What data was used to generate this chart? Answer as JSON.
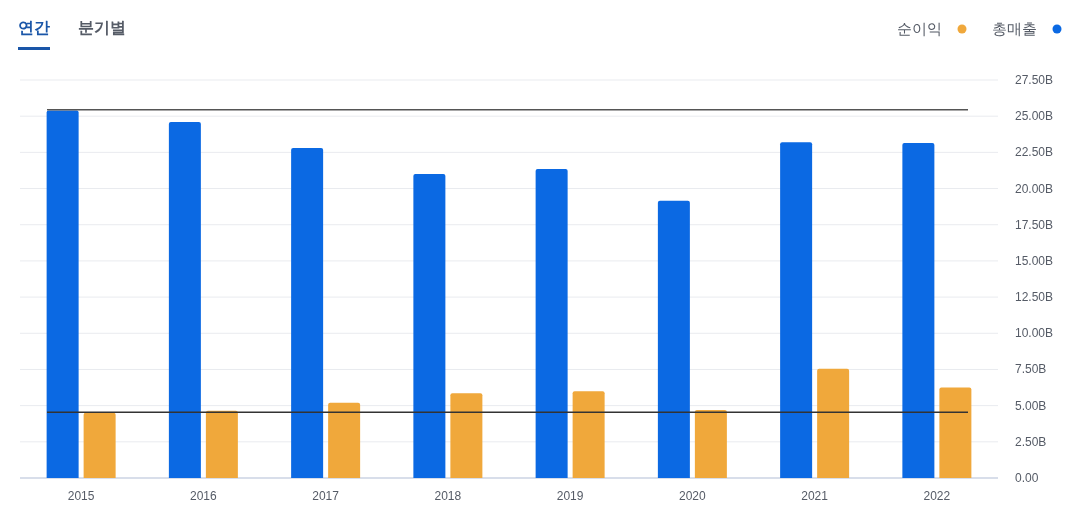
{
  "chart_data": {
    "type": "bar",
    "annotations": [
      "연간",
      "분기별"
    ],
    "categories": [
      "2015",
      "2016",
      "2017",
      "2018",
      "2019",
      "2020",
      "2021",
      "2022"
    ],
    "series": [
      {
        "name": "총매출",
        "color": "#0b69e3",
        "values": [
          25.4,
          24.6,
          22.8,
          21.0,
          21.35,
          19.15,
          23.2,
          23.15
        ]
      },
      {
        "name": "순이익",
        "color": "#f0a83b",
        "values": [
          4.5,
          4.65,
          5.2,
          5.85,
          6.0,
          4.7,
          7.55,
          6.25
        ]
      }
    ],
    "ylim": [
      0,
      27.5
    ],
    "yticks": [
      {
        "value": 0,
        "label": "0.00"
      },
      {
        "value": 2.5,
        "label": "2.50B"
      },
      {
        "value": 5,
        "label": "5.00B"
      },
      {
        "value": 7.5,
        "label": "7.50B"
      },
      {
        "value": 10,
        "label": "10.00B"
      },
      {
        "value": 12.5,
        "label": "12.50B"
      },
      {
        "value": 15,
        "label": "15.00B"
      },
      {
        "value": 17.5,
        "label": "17.50B"
      },
      {
        "value": 20,
        "label": "20.00B"
      },
      {
        "value": 22.5,
        "label": "22.50B"
      },
      {
        "value": 25,
        "label": "25.00B"
      },
      {
        "value": 27.5,
        "label": "27.50B"
      }
    ],
    "grid": "y",
    "legend": "top right",
    "ref_lines": [
      {
        "axis": "y",
        "value": 25.45,
        "color": "#555555"
      },
      {
        "axis": "y",
        "value": 4.55,
        "color": "#333333"
      }
    ]
  }
}
